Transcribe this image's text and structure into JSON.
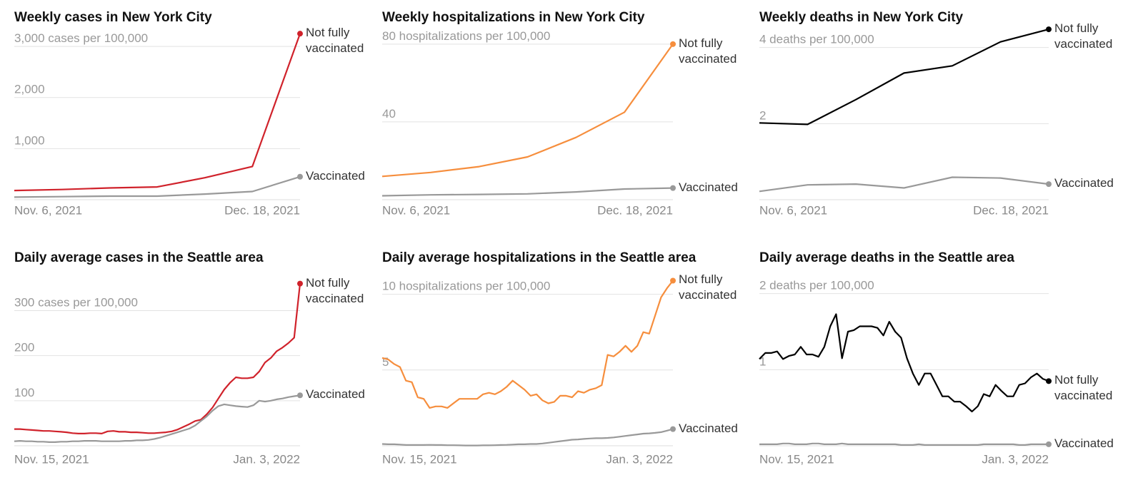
{
  "chart_data": [
    {
      "type": "line",
      "title": "Weekly cases in New York City",
      "categories": [
        "Nov. 6, 2021",
        null,
        null,
        null,
        null,
        null,
        "Dec. 18, 2021"
      ],
      "series": [
        {
          "name": "Not fully vaccinated",
          "color": "#d0222b",
          "values": [
            180,
            200,
            230,
            250,
            430,
            650,
            3250
          ]
        },
        {
          "name": "Vaccinated",
          "color": "#999999",
          "values": [
            50,
            60,
            70,
            70,
            110,
            160,
            450
          ]
        }
      ],
      "ylim": [
        0,
        3350
      ],
      "yticks": [
        {
          "value": 1000,
          "label": "1,000"
        },
        {
          "value": 2000,
          "label": "2,000"
        },
        {
          "value": 3000,
          "label": "3,000 cases per 100,000"
        }
      ],
      "grid": true
    },
    {
      "type": "line",
      "title": "Weekly hospitalizations in New York City",
      "categories": [
        "Nov. 6, 2021",
        null,
        null,
        null,
        null,
        null,
        "Dec. 18, 2021"
      ],
      "series": [
        {
          "name": "Not fully vaccinated",
          "color": "#f68e3d",
          "values": [
            12,
            14,
            17,
            22,
            32,
            45,
            80
          ]
        },
        {
          "name": "Vaccinated",
          "color": "#999999",
          "values": [
            2,
            2.5,
            2.7,
            3,
            4,
            5.5,
            6
          ]
        }
      ],
      "ylim": [
        0,
        88
      ],
      "yticks": [
        40,
        {
          "value": 80,
          "label": "80 hospitalizations per 100,000"
        }
      ],
      "grid": true
    },
    {
      "type": "line",
      "title": "Weekly deaths in New York City",
      "categories": [
        "Nov. 6, 2021",
        null,
        null,
        null,
        null,
        null,
        "Dec. 18, 2021"
      ],
      "series": [
        {
          "name": "Not fully vaccinated",
          "color": "#000000",
          "values": [
            2.02,
            1.98,
            2.63,
            3.33,
            3.52,
            4.15,
            4.48
          ]
        },
        {
          "name": "Vaccinated",
          "color": "#999999",
          "values": [
            0.22,
            0.39,
            0.41,
            0.31,
            0.59,
            0.57,
            0.41
          ]
        }
      ],
      "ylim": [
        0,
        4.5
      ],
      "yticks": [
        2,
        {
          "value": 4,
          "label": "4 deaths per 100,000"
        }
      ],
      "grid": true
    },
    {
      "type": "line",
      "title": "Daily average cases in the Seattle area",
      "categories": [
        "Nov. 15, 2021",
        null,
        null,
        null,
        null,
        null,
        null,
        null,
        null,
        null,
        null,
        null,
        null,
        null,
        null,
        null,
        null,
        null,
        null,
        null,
        null,
        null,
        null,
        null,
        null,
        null,
        null,
        null,
        null,
        null,
        null,
        null,
        null,
        null,
        null,
        null,
        null,
        null,
        null,
        null,
        null,
        null,
        null,
        null,
        null,
        null,
        null,
        null,
        null,
        "Jan. 3, 2022"
      ],
      "series": [
        {
          "name": "Not fully vaccinated",
          "color": "#d0222b",
          "values": [
            37,
            37,
            36,
            35,
            34,
            33,
            33,
            32,
            31,
            30,
            28,
            27,
            27,
            28,
            28,
            27,
            32,
            33,
            31,
            31,
            30,
            30,
            29,
            28,
            28,
            29,
            30,
            32,
            36,
            42,
            48,
            55,
            58,
            70,
            85,
            105,
            125,
            140,
            152,
            150,
            150,
            152,
            165,
            185,
            195,
            210,
            218,
            228,
            240,
            360
          ]
        },
        {
          "name": "Vaccinated",
          "color": "#999999",
          "values": [
            10,
            11,
            10,
            10,
            9,
            9,
            8,
            8,
            9,
            9,
            10,
            10,
            11,
            11,
            11,
            10,
            10,
            10,
            10,
            11,
            11,
            12,
            12,
            13,
            15,
            18,
            22,
            26,
            30,
            34,
            38,
            45,
            55,
            65,
            78,
            88,
            92,
            90,
            88,
            87,
            86,
            90,
            100,
            98,
            100,
            103,
            105,
            108,
            110,
            112
          ]
        }
      ],
      "ylim": [
        0,
        380
      ],
      "yticks": [
        100,
        200,
        {
          "value": 300,
          "label": "300 cases per 100,000"
        }
      ],
      "grid": true
    },
    {
      "type": "line",
      "title": "Daily average hospitalizations in the Seattle area",
      "categories": [
        "Nov. 15, 2021",
        null,
        null,
        null,
        null,
        null,
        null,
        null,
        null,
        null,
        null,
        null,
        null,
        null,
        null,
        null,
        null,
        null,
        null,
        null,
        null,
        null,
        null,
        null,
        null,
        null,
        null,
        null,
        null,
        null,
        null,
        null,
        null,
        null,
        null,
        null,
        null,
        null,
        null,
        null,
        null,
        null,
        null,
        null,
        null,
        null,
        null,
        null,
        null,
        "Jan. 3, 2022"
      ],
      "series": [
        {
          "name": "Not fully vaccinated",
          "color": "#f68e3d",
          "values": [
            5.8,
            5.7,
            5.4,
            5.2,
            4.3,
            4.2,
            3.2,
            3.1,
            2.5,
            2.6,
            2.6,
            2.5,
            2.8,
            3.1,
            3.1,
            3.1,
            3.1,
            3.4,
            3.5,
            3.4,
            3.6,
            3.9,
            4.3,
            4.0,
            3.7,
            3.3,
            3.4,
            3.0,
            2.8,
            2.9,
            3.3,
            3.3,
            3.2,
            3.6,
            3.5,
            3.7,
            3.8,
            4.0,
            6.0,
            5.9,
            6.2,
            6.6,
            6.2,
            6.6,
            7.5,
            7.4,
            8.6,
            9.8,
            10.4,
            10.9
          ]
        },
        {
          "name": "Vaccinated",
          "color": "#999999",
          "values": [
            0.12,
            0.1,
            0.1,
            0.08,
            0.05,
            0.05,
            0.05,
            0.05,
            0.06,
            0.05,
            0.05,
            0.04,
            0.04,
            0.03,
            0.02,
            0.02,
            0.02,
            0.03,
            0.03,
            0.04,
            0.05,
            0.06,
            0.08,
            0.1,
            0.1,
            0.12,
            0.12,
            0.15,
            0.2,
            0.25,
            0.3,
            0.35,
            0.4,
            0.42,
            0.45,
            0.48,
            0.5,
            0.5,
            0.52,
            0.55,
            0.6,
            0.65,
            0.7,
            0.75,
            0.8,
            0.82,
            0.85,
            0.9,
            1.0,
            1.1
          ]
        }
      ],
      "ylim": [
        0,
        11.3
      ],
      "yticks": [
        5,
        {
          "value": 10,
          "label": "10 hospitalizations per 100,000"
        }
      ],
      "grid": true
    },
    {
      "type": "line",
      "title": "Daily average deaths in the Seattle area",
      "categories": [
        "Nov. 15, 2021",
        null,
        null,
        null,
        null,
        null,
        null,
        null,
        null,
        null,
        null,
        null,
        null,
        null,
        null,
        null,
        null,
        null,
        null,
        null,
        null,
        null,
        null,
        null,
        null,
        null,
        null,
        null,
        null,
        null,
        null,
        null,
        null,
        null,
        null,
        null,
        null,
        null,
        null,
        null,
        null,
        null,
        null,
        null,
        null,
        null,
        null,
        null,
        null,
        "Jan. 3, 2022"
      ],
      "series": [
        {
          "name": "Not fully vaccinated",
          "color": "#000000",
          "values": [
            1.14,
            1.22,
            1.22,
            1.24,
            1.14,
            1.18,
            1.2,
            1.3,
            1.2,
            1.2,
            1.17,
            1.3,
            1.57,
            1.73,
            1.15,
            1.5,
            1.52,
            1.57,
            1.57,
            1.57,
            1.55,
            1.45,
            1.63,
            1.5,
            1.42,
            1.15,
            0.95,
            0.8,
            0.95,
            0.95,
            0.8,
            0.65,
            0.65,
            0.58,
            0.58,
            0.52,
            0.45,
            0.52,
            0.68,
            0.65,
            0.8,
            0.72,
            0.65,
            0.65,
            0.8,
            0.82,
            0.9,
            0.95,
            0.88,
            0.85
          ]
        },
        {
          "name": "Vaccinated",
          "color": "#999999",
          "values": [
            0.02,
            0.02,
            0.02,
            0.02,
            0.03,
            0.03,
            0.02,
            0.02,
            0.02,
            0.03,
            0.03,
            0.02,
            0.02,
            0.02,
            0.03,
            0.02,
            0.02,
            0.02,
            0.02,
            0.02,
            0.02,
            0.02,
            0.02,
            0.02,
            0.01,
            0.01,
            0.01,
            0.02,
            0.01,
            0.01,
            0.01,
            0.01,
            0.01,
            0.01,
            0.01,
            0.01,
            0.01,
            0.01,
            0.02,
            0.02,
            0.02,
            0.02,
            0.02,
            0.02,
            0.01,
            0.01,
            0.02,
            0.02,
            0.02,
            0.02
          ]
        }
      ],
      "ylim": [
        0,
        2.25
      ],
      "yticks": [
        1,
        {
          "value": 2,
          "label": "2 deaths per 100,000"
        }
      ],
      "grid": true
    }
  ]
}
